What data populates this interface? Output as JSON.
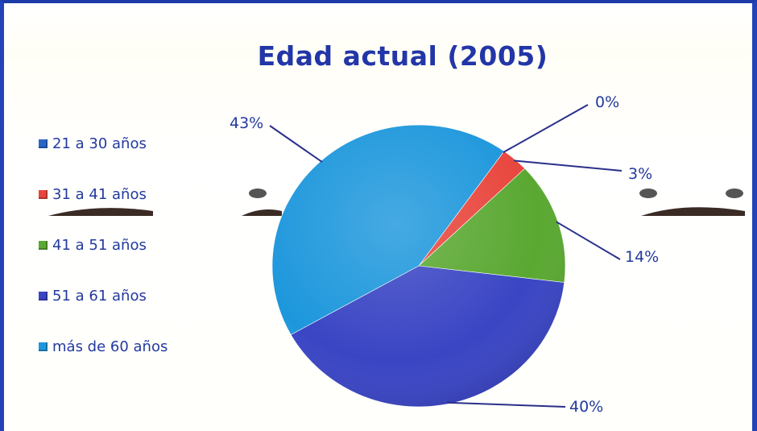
{
  "chart_data": {
    "type": "pie",
    "title": "Edad actual (2005)",
    "categories": [
      "21 a 30 años",
      "31 a 41 años",
      "41 a 51 años",
      "51 a 61 años",
      "más de 60 años"
    ],
    "values": [
      0,
      3,
      14,
      40,
      43
    ],
    "data_labels": [
      "0%",
      "3%",
      "14%",
      "40%",
      "43%"
    ],
    "colors": [
      "#2f5fd0",
      "#e8453c",
      "#5aa832",
      "#3a45c4",
      "#1d97dc"
    ],
    "legend_position": "left"
  },
  "legend": {
    "items": [
      {
        "label": "21 a 30 años",
        "color": "#2a66c8"
      },
      {
        "label": "31 a 41 años",
        "color": "#e8453c"
      },
      {
        "label": "41 a 51 años",
        "color": "#5aa832"
      },
      {
        "label": "51 a 61 años",
        "color": "#3a45c4"
      },
      {
        "label": "más de 60 años",
        "color": "#1d97dc"
      }
    ]
  }
}
